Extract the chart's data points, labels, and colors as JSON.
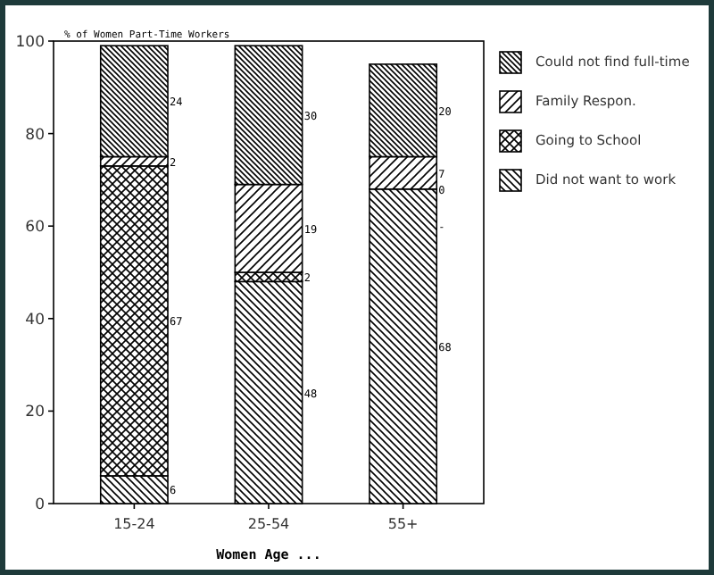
{
  "chart_data": {
    "type": "bar",
    "stacked": true,
    "ylabel": "% of Women Part-Time Workers",
    "xlabel": "Women Age ...",
    "categories": [
      "15-24",
      "25-54",
      "55+"
    ],
    "series": [
      {
        "name": "Did not want to work",
        "color": "#000000",
        "values": [
          6,
          48,
          68
        ],
        "value_labels": [
          "6",
          "48",
          "68"
        ]
      },
      {
        "name": "Going to School",
        "color": "#000000",
        "values": [
          67,
          2,
          0
        ],
        "value_labels": [
          "67",
          "2",
          null
        ]
      },
      {
        "name": "Family Respon.",
        "color": "#000000",
        "values": [
          2,
          19,
          7
        ],
        "value_labels": [
          "2",
          "19",
          "7"
        ]
      },
      {
        "name": "Could not find full-time",
        "color": "#000000",
        "values": [
          24,
          30,
          20
        ],
        "value_labels": [
          "24",
          "30",
          "20"
        ]
      }
    ],
    "ylim": [
      0,
      100
    ],
    "yticks": [
      0,
      20,
      40,
      60,
      80,
      100
    ],
    "grid": false,
    "legend": "right",
    "annotations": [
      "0",
      "-"
    ]
  }
}
